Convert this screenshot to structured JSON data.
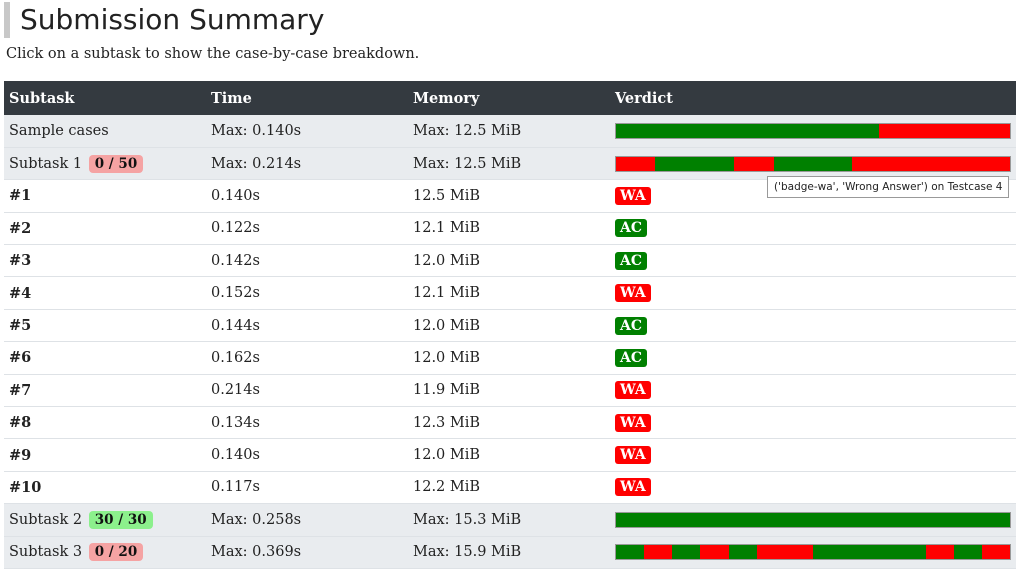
{
  "title": "Submission Summary",
  "subtitle": "Click on a subtask to show the case-by-case breakdown.",
  "colors": {
    "ac": "#008000",
    "wa": "#ff0000",
    "header_bg": "#343a40"
  },
  "table": {
    "headers": [
      "Subtask",
      "Time",
      "Memory",
      "Verdict"
    ],
    "sample": {
      "name": "Sample cases",
      "time": "Max: 0.140s",
      "memory": "Max: 12.5 MiB",
      "segments": [
        "AC",
        "AC",
        "WA"
      ]
    },
    "subtask1": {
      "name": "Subtask 1",
      "score": "0 / 50",
      "time": "Max: 0.214s",
      "memory": "Max: 12.5 MiB",
      "segments": [
        "WA",
        "AC",
        "AC",
        "WA",
        "AC",
        "AC",
        "WA",
        "WA",
        "WA",
        "WA"
      ]
    },
    "cases": [
      {
        "name": "#1",
        "time": "0.140s",
        "memory": "12.5 MiB",
        "verdict": "WA"
      },
      {
        "name": "#2",
        "time": "0.122s",
        "memory": "12.1 MiB",
        "verdict": "AC"
      },
      {
        "name": "#3",
        "time": "0.142s",
        "memory": "12.0 MiB",
        "verdict": "AC"
      },
      {
        "name": "#4",
        "time": "0.152s",
        "memory": "12.1 MiB",
        "verdict": "WA"
      },
      {
        "name": "#5",
        "time": "0.144s",
        "memory": "12.0 MiB",
        "verdict": "AC"
      },
      {
        "name": "#6",
        "time": "0.162s",
        "memory": "12.0 MiB",
        "verdict": "AC"
      },
      {
        "name": "#7",
        "time": "0.214s",
        "memory": "11.9 MiB",
        "verdict": "WA"
      },
      {
        "name": "#8",
        "time": "0.134s",
        "memory": "12.3 MiB",
        "verdict": "WA"
      },
      {
        "name": "#9",
        "time": "0.140s",
        "memory": "12.0 MiB",
        "verdict": "WA"
      },
      {
        "name": "#10",
        "time": "0.117s",
        "memory": "12.2 MiB",
        "verdict": "WA"
      }
    ],
    "subtask2": {
      "name": "Subtask 2",
      "score": "30 / 30",
      "time": "Max: 0.258s",
      "memory": "Max: 15.3 MiB",
      "segments": [
        "AC"
      ]
    },
    "subtask3": {
      "name": "Subtask 3",
      "score": "0 / 20",
      "time": "Max: 0.369s",
      "memory": "Max: 15.9 MiB",
      "segments": [
        "AC",
        "WA",
        "AC",
        "WA",
        "AC",
        "WA",
        "WA",
        "AC",
        "AC",
        "AC",
        "AC",
        "WA",
        "AC",
        "WA"
      ]
    }
  },
  "tooltip": "('badge-wa', 'Wrong Answer') on Testcase 4"
}
